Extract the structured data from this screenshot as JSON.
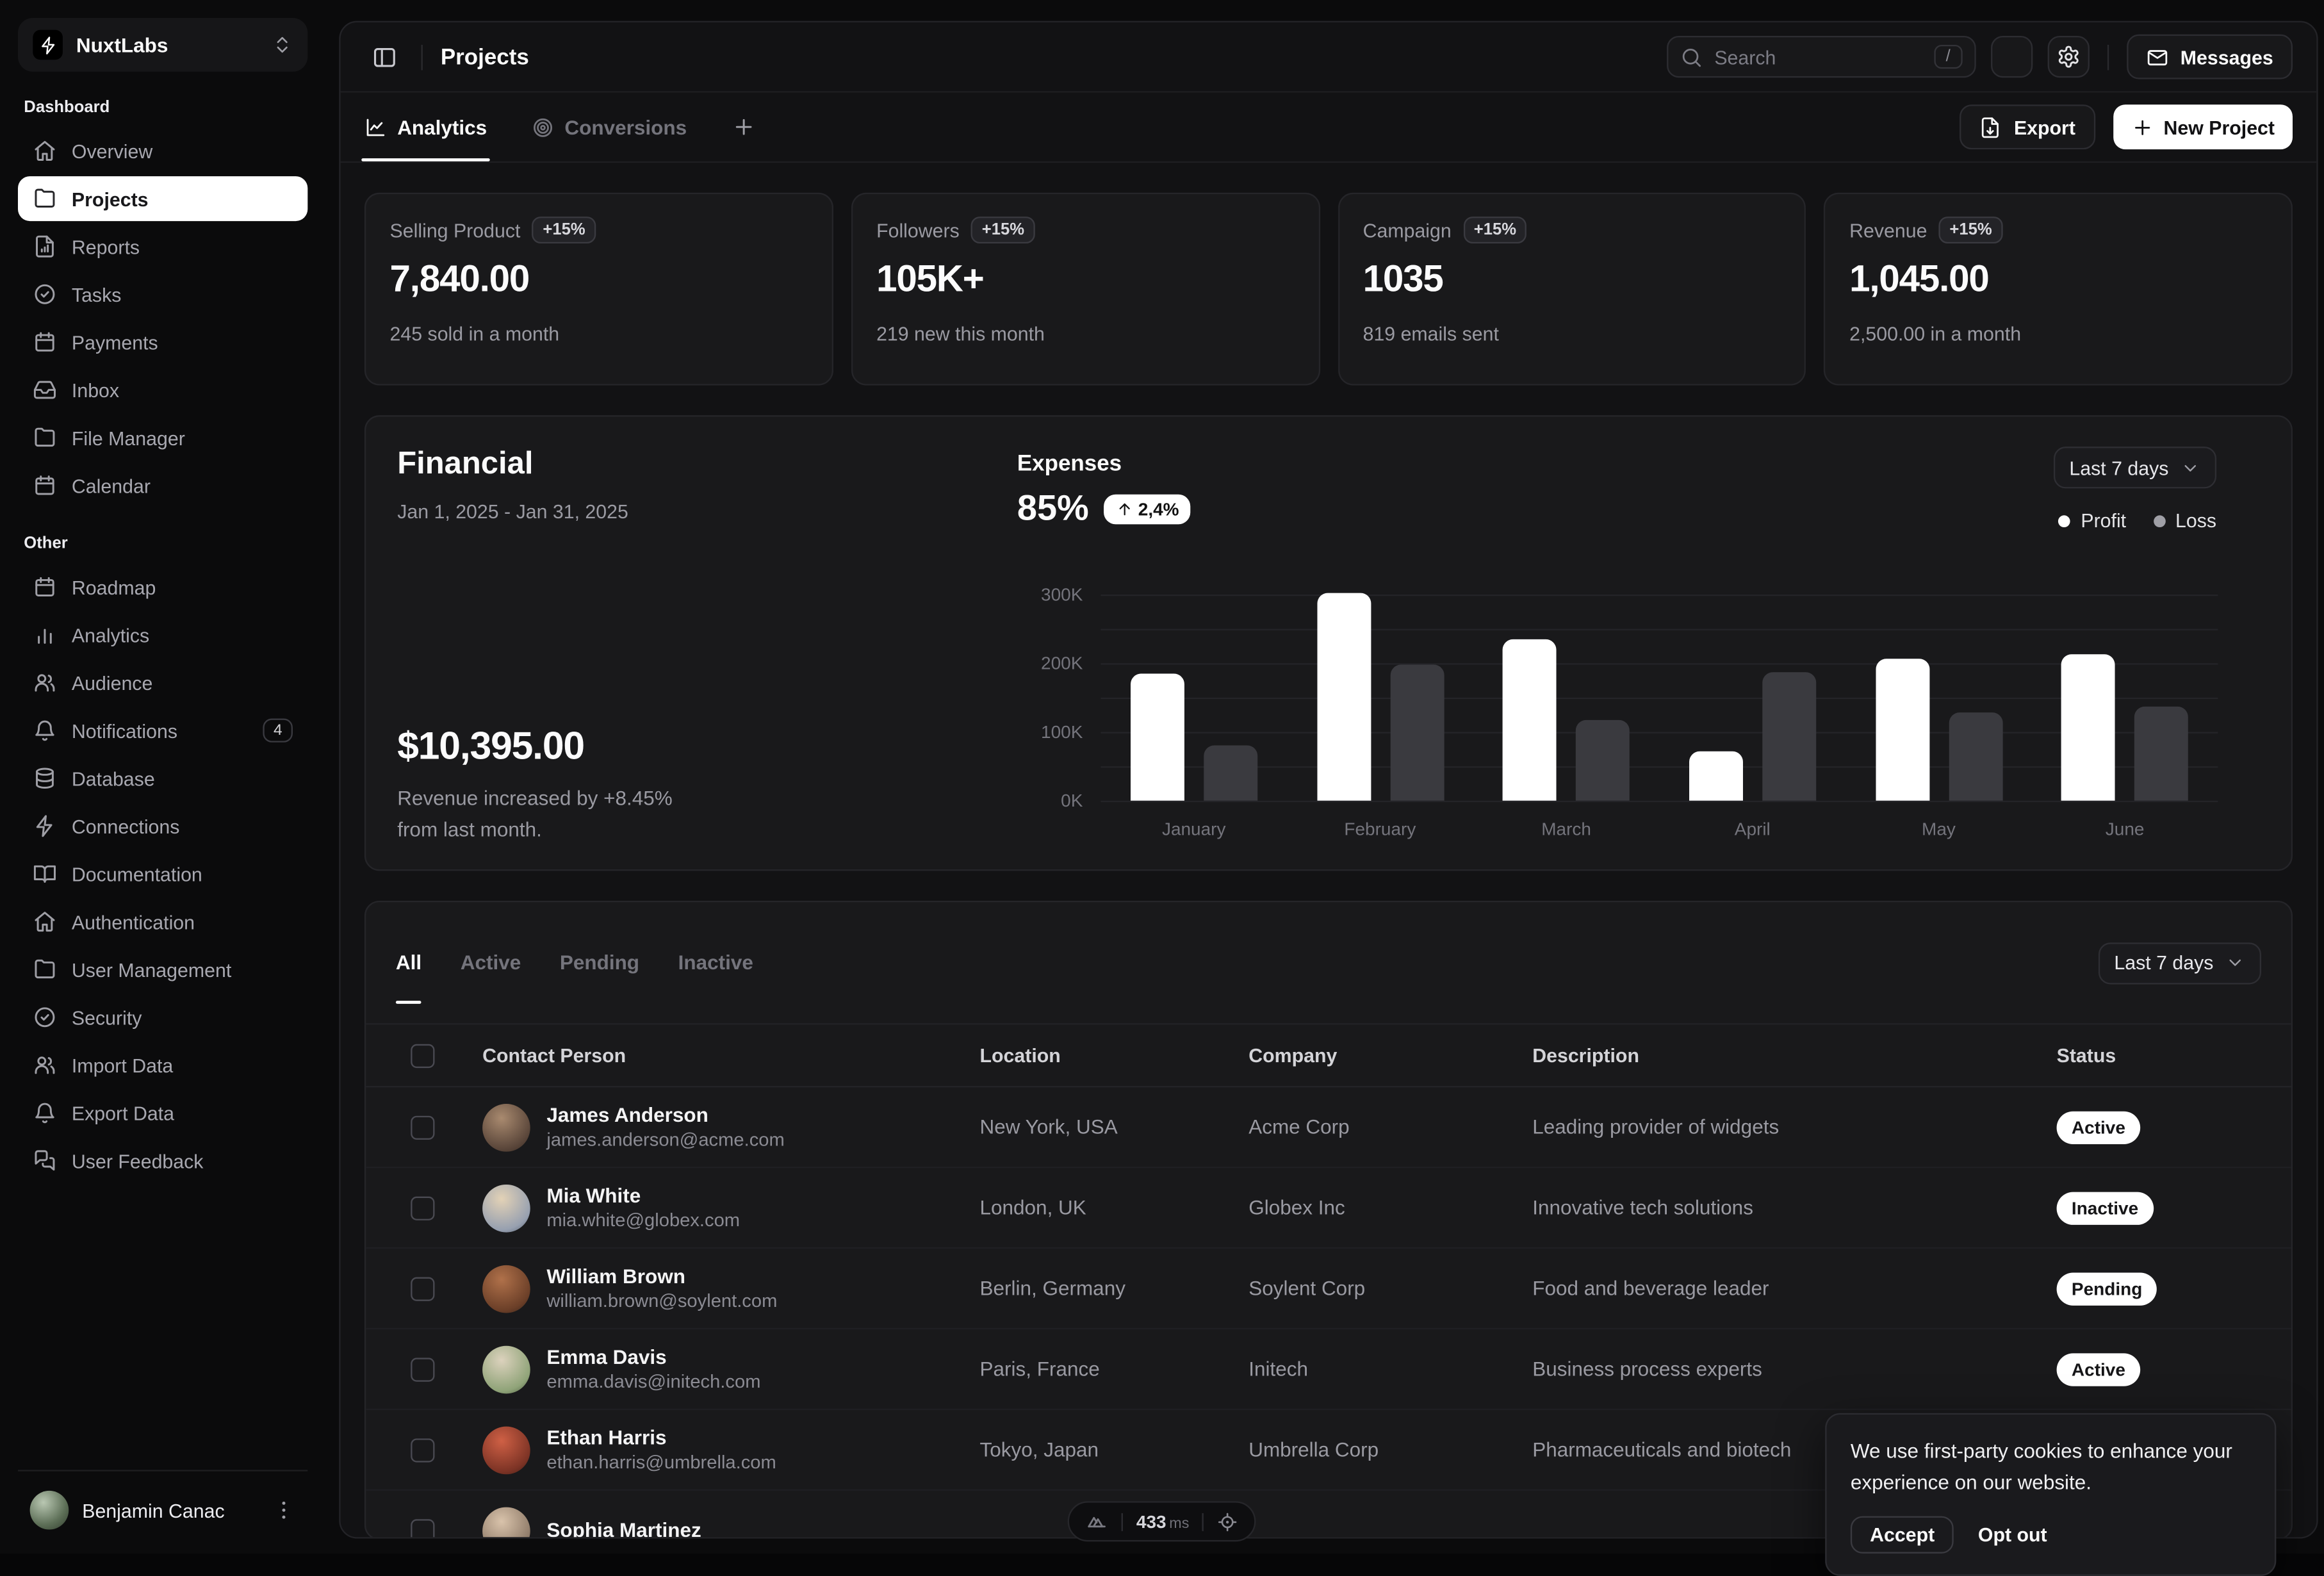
{
  "sidebar": {
    "workspace": {
      "name": "NuxtLabs",
      "icon": "lightning-icon"
    },
    "sections": [
      {
        "label": "Dashboard",
        "items": [
          {
            "label": "Overview",
            "icon": "home-icon"
          },
          {
            "label": "Projects",
            "icon": "folder-icon",
            "active": true
          },
          {
            "label": "Reports",
            "icon": "report-icon"
          },
          {
            "label": "Tasks",
            "icon": "check-circle-icon"
          },
          {
            "label": "Payments",
            "icon": "calendar-icon"
          },
          {
            "label": "Inbox",
            "icon": "inbox-icon"
          },
          {
            "label": "File Manager",
            "icon": "folder-icon"
          },
          {
            "label": "Calendar",
            "icon": "calendar-icon"
          }
        ]
      },
      {
        "label": "Other",
        "items": [
          {
            "label": "Roadmap",
            "icon": "calendar-icon"
          },
          {
            "label": "Analytics",
            "icon": "bar-chart-icon"
          },
          {
            "label": "Audience",
            "icon": "users-icon"
          },
          {
            "label": "Notifications",
            "icon": "bell-icon",
            "badge": "4"
          },
          {
            "label": "Database",
            "icon": "database-icon"
          },
          {
            "label": "Connections",
            "icon": "zap-icon"
          },
          {
            "label": "Documentation",
            "icon": "book-open-icon"
          },
          {
            "label": "Authentication",
            "icon": "home-icon"
          },
          {
            "label": "User Management",
            "icon": "folder-icon"
          },
          {
            "label": "Security",
            "icon": "check-circle-icon"
          },
          {
            "label": "Import Data",
            "icon": "users-icon"
          },
          {
            "label": "Export Data",
            "icon": "bell-icon"
          },
          {
            "label": "User Feedback",
            "icon": "chat-icon"
          }
        ]
      }
    ],
    "user": {
      "name": "Benjamin Canac"
    }
  },
  "header": {
    "title": "Projects",
    "search": {
      "placeholder": "Search",
      "shortcut": "/"
    },
    "messages_label": "Messages"
  },
  "toolbar": {
    "tabs": [
      {
        "label": "Analytics",
        "icon": "line-chart-icon",
        "active": true
      },
      {
        "label": "Conversions",
        "icon": "target-icon",
        "active": false
      }
    ],
    "export_label": "Export",
    "new_project_label": "New Project"
  },
  "stats": [
    {
      "label": "Selling Product",
      "badge": "+15%",
      "value": "7,840.00",
      "sub": "245 sold in a month"
    },
    {
      "label": "Followers",
      "badge": "+15%",
      "value": "105K+",
      "sub": "219 new this month"
    },
    {
      "label": "Campaign",
      "badge": "+15%",
      "value": "1035",
      "sub": "819 emails sent"
    },
    {
      "label": "Revenue",
      "badge": "+15%",
      "value": "1,045.00",
      "sub": "2,500.00 in a month"
    }
  ],
  "financial": {
    "title": "Financial",
    "date_range": "Jan 1, 2025 - Jan 31, 2025",
    "total": "$10,395.00",
    "note_line1": "Revenue increased by +8.45%",
    "note_line2": "from last month.",
    "expenses_label": "Expenses",
    "expenses_value": "85%",
    "expenses_delta": "2,4%",
    "period": "Last 7 days",
    "legend": [
      {
        "label": "Profit",
        "color": "#ffffff"
      },
      {
        "label": "Loss",
        "color": "#9f9fa6"
      }
    ]
  },
  "chart_data": {
    "type": "bar",
    "title": "Expenses",
    "categories": [
      "January",
      "February",
      "March",
      "April",
      "May",
      "June"
    ],
    "series": [
      {
        "name": "Profit",
        "color": "#ffffff",
        "values": [
          185000,
          302000,
          235000,
          72000,
          207000,
          212000
        ]
      },
      {
        "name": "Loss",
        "color": "#3a3a3f",
        "values": [
          80000,
          198000,
          118000,
          188000,
          128000,
          138000
        ]
      }
    ],
    "ylim": [
      0,
      300000
    ],
    "gridline_step": 50000,
    "ytick_labels": [
      "0K",
      "100K",
      "200K",
      "300K"
    ],
    "grid": true,
    "legend_position": "top-right"
  },
  "contacts": {
    "filters": [
      "All",
      "Active",
      "Pending",
      "Inactive"
    ],
    "active_filter": "All",
    "period": "Last 7 days",
    "columns": [
      "Contact Person",
      "Location",
      "Company",
      "Description",
      "Status"
    ],
    "rows": [
      {
        "name": "James Anderson",
        "email": "james.anderson@acme.com",
        "location": "New York, USA",
        "company": "Acme Corp",
        "description": "Leading provider of widgets",
        "status": "Active",
        "avatar_gradient": "radial-gradient(circle at 40% 30%, #a98a6f, #5a463a 70%, #33271f)"
      },
      {
        "name": "Mia White",
        "email": "mia.white@globex.com",
        "location": "London, UK",
        "company": "Globex Inc",
        "description": "Innovative tech solutions",
        "status": "Inactive",
        "avatar_gradient": "radial-gradient(circle at 40% 30%, #e3d2b6, #97a0b0 70%, #4d5666)"
      },
      {
        "name": "William Brown",
        "email": "william.brown@soylent.com",
        "location": "Berlin, Germany",
        "company": "Soylent Corp",
        "description": "Food and beverage leader",
        "status": "Pending",
        "avatar_gradient": "radial-gradient(circle at 40% 30%, #b0714a, #6b3f28 70%, #32211a)"
      },
      {
        "name": "Emma Davis",
        "email": "emma.davis@initech.com",
        "location": "Paris, France",
        "company": "Initech",
        "description": "Business process experts",
        "status": "Active",
        "avatar_gradient": "radial-gradient(circle at 40% 30%, #dcd2bd, #8fa378 70%, #45523b)"
      },
      {
        "name": "Ethan Harris",
        "email": "ethan.harris@umbrella.com",
        "location": "Tokyo, Japan",
        "company": "Umbrella Corp",
        "description": "Pharmaceuticals and biotech",
        "status": "",
        "avatar_gradient": "radial-gradient(circle at 40% 30%, #cf6045, #7c3325 70%, #3d1c15)"
      },
      {
        "name": "Sophia Martinez",
        "email": "",
        "location": "",
        "company": "",
        "description": "",
        "status": "",
        "avatar_gradient": "radial-gradient(circle at 40% 30%, #d9c3ab, #8f7b69 70%, #4a4038)"
      }
    ]
  },
  "cookie_banner": {
    "message": "We use first-party cookies to enhance your experience on our website.",
    "accept_label": "Accept",
    "optout_label": "Opt out"
  },
  "devtools": {
    "time": "433",
    "unit": "ms"
  }
}
